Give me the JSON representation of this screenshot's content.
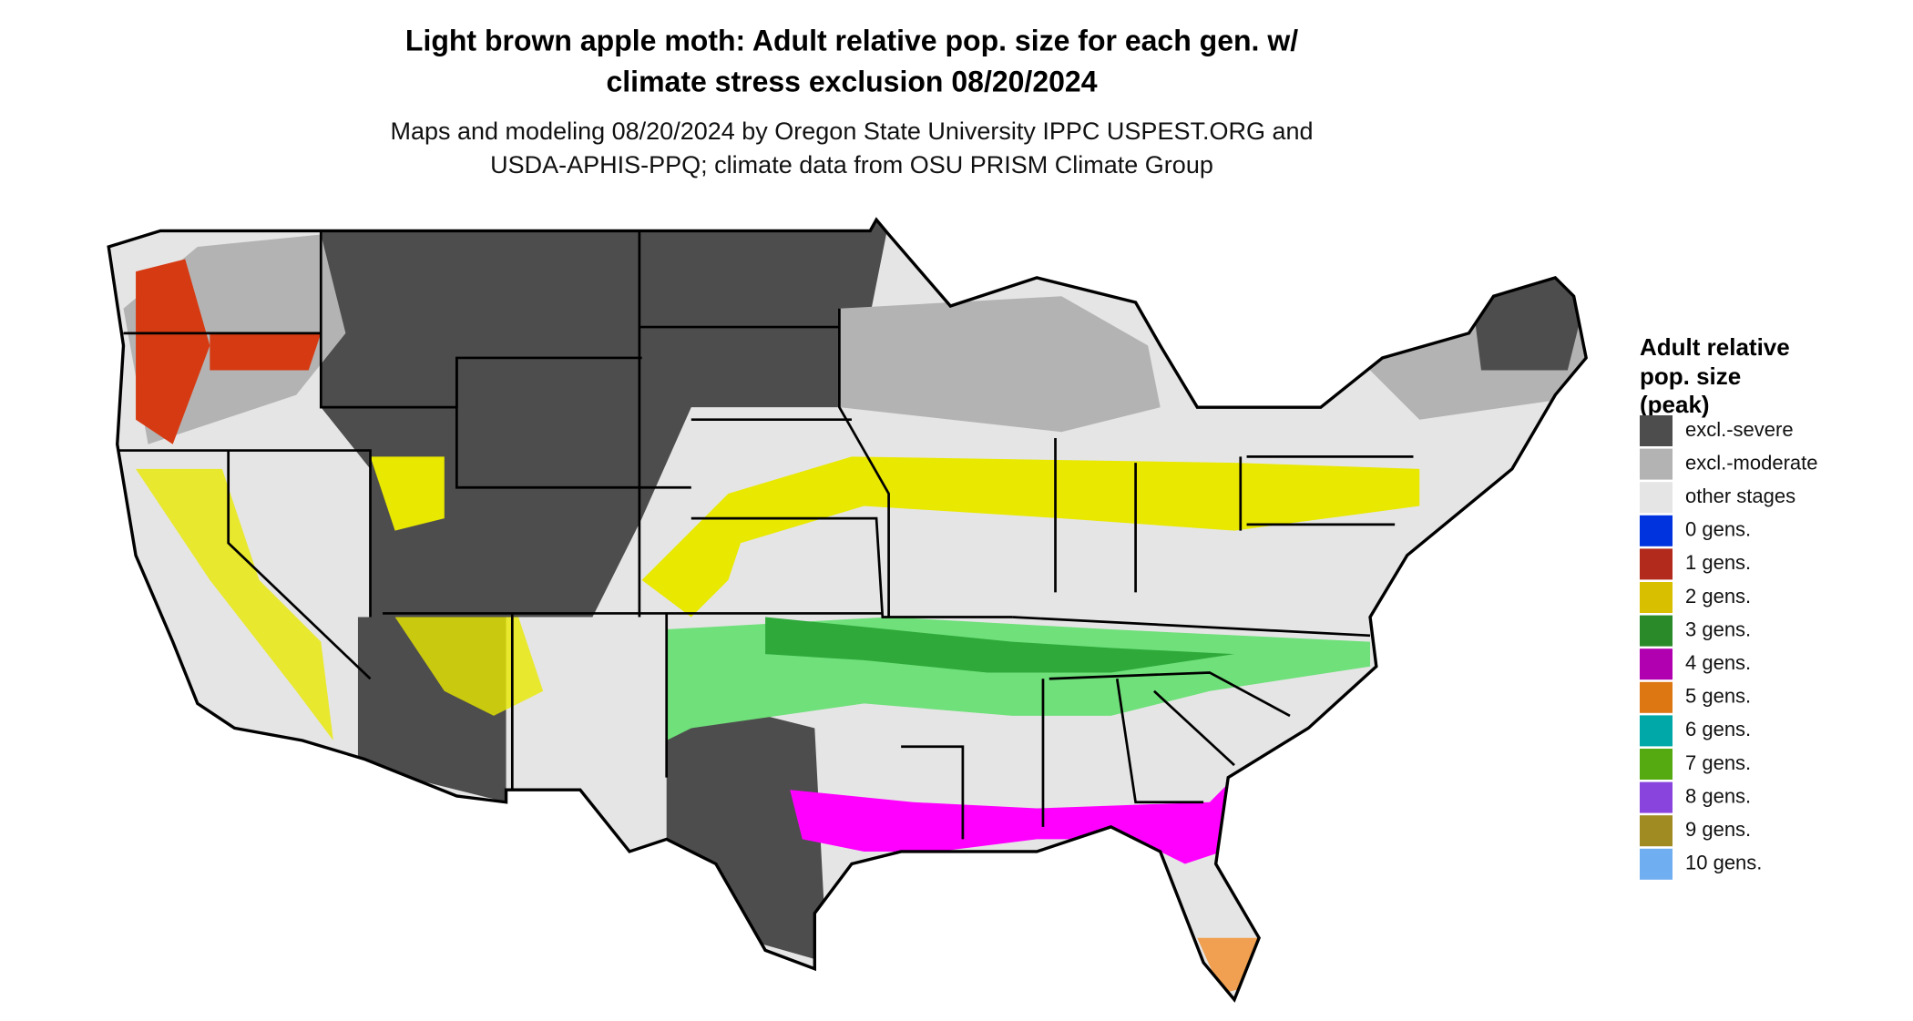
{
  "header": {
    "title": [
      "Light brown apple moth: Adult relative pop. size for each gen. w/",
      "climate stress exclusion 08/20/2024"
    ],
    "subtitle": [
      "Maps and modeling 08/20/2024 by Oregon State University IPPC USPEST.ORG and",
      "USDA-APHIS-PPQ; climate data from OSU PRISM Climate Group"
    ]
  },
  "legend": {
    "title": [
      "Adult relative",
      "pop. size",
      "(peak)"
    ],
    "items": [
      {
        "label": "excl.-severe",
        "color": "#4d4d4d"
      },
      {
        "label": "excl.-moderate",
        "color": "#b3b3b3"
      },
      {
        "label": "other stages",
        "color": "#e5e5e5"
      },
      {
        "label": "0 gens.",
        "color": "#0033dd"
      },
      {
        "label": "1 gens.",
        "color": "#b22a1b"
      },
      {
        "label": "2 gens.",
        "color": "#d8c000"
      },
      {
        "label": "3 gens.",
        "color": "#2a8a2a"
      },
      {
        "label": "4 gens.",
        "color": "#b000b0"
      },
      {
        "label": "5 gens.",
        "color": "#dd7711"
      },
      {
        "label": "6 gens.",
        "color": "#00a8a8"
      },
      {
        "label": "7 gens.",
        "color": "#55aa11"
      },
      {
        "label": "8 gens.",
        "color": "#8844dd"
      },
      {
        "label": "9 gens.",
        "color": "#a08a22"
      },
      {
        "label": "10 gens.",
        "color": "#6faef0"
      }
    ]
  }
}
